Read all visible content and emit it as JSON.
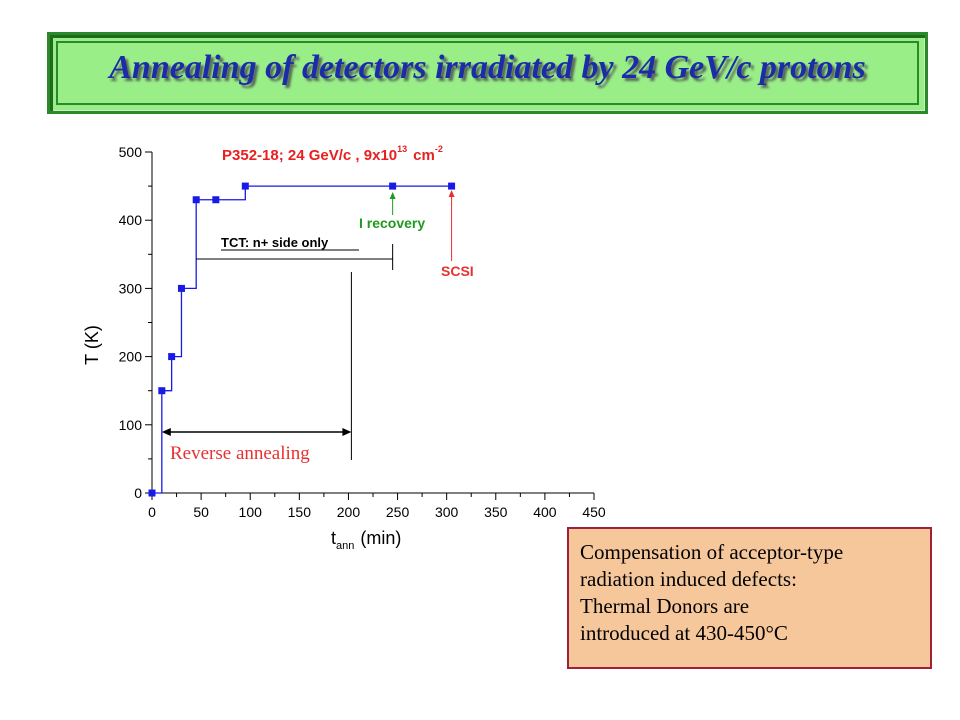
{
  "title": "Annealing of detectors irradiated by 24 GeV/c protons",
  "note_lines": [
    "Compensation of acceptor-type",
    "radiation induced defects:",
    "Thermal Donors are",
    "introduced at 430-450°C"
  ],
  "colors": {
    "series": "#1a1ae6",
    "title_text": "#1a2ca8",
    "title_bg": "#99ee88",
    "note_bg": "#f7c79c",
    "label_red": "#e83030",
    "label_green": "#1f9a1f"
  },
  "chart_data": {
    "type": "line",
    "title": "P352-18;  24 GeV/c , 9x10^13 cm^-2",
    "title_parts": {
      "main": "P352-18;  24 GeV/c , 9x10",
      "exp1": "13",
      "unit": "cm",
      "exp2": "-2"
    },
    "xlabel": "t_ann (min)",
    "xlabel_parts": {
      "t": "t",
      "sub": "ann",
      "rest": "(min)"
    },
    "ylabel": "T (K)",
    "xlim": [
      0,
      450
    ],
    "ylim": [
      0,
      500
    ],
    "xticks": [
      "0",
      "50",
      "100",
      "150",
      "200",
      "250",
      "300",
      "350",
      "400",
      "450"
    ],
    "yticks": [
      "0",
      "100",
      "200",
      "300",
      "400",
      "500"
    ],
    "series": [
      {
        "step": true,
        "x": [
          0,
          10,
          20,
          30,
          45,
          65,
          95,
          245,
          305
        ],
        "y": [
          0,
          150,
          200,
          300,
          430,
          430,
          450,
          450,
          450
        ]
      }
    ],
    "annotations": {
      "tct": "TCT: n+ side only",
      "i_recovery": "I recovery",
      "scsi": "SCSI",
      "reverse": "Reverse annealing"
    }
  }
}
